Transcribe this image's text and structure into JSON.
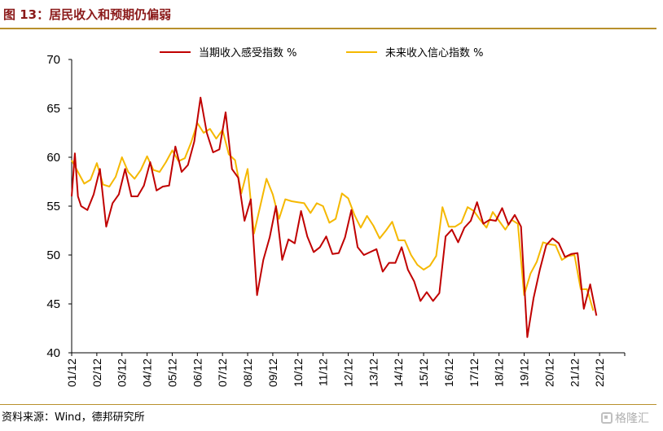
{
  "header": {
    "title": "图 13：居民收入和预期仍偏弱"
  },
  "footer": {
    "source": "资料来源：Wind，德邦研究所",
    "watermark": "格隆汇"
  },
  "colors": {
    "series_red": "#C00000",
    "series_yellow": "#F5B800",
    "accent": "#B8902C",
    "title": "#8B1A1A"
  },
  "chart_data": {
    "type": "line",
    "title": "",
    "xlabel": "",
    "ylabel": "",
    "ylim": [
      40,
      70
    ],
    "yticks": [
      40,
      45,
      50,
      55,
      60,
      65,
      70
    ],
    "xlim": [
      0,
      88
    ],
    "grid": false,
    "legend_position": "top",
    "x_ticks": [
      {
        "x": 0,
        "label": "01/12"
      },
      {
        "x": 4,
        "label": "02/12"
      },
      {
        "x": 8,
        "label": "03/12"
      },
      {
        "x": 12,
        "label": "04/12"
      },
      {
        "x": 16,
        "label": "05/12"
      },
      {
        "x": 20,
        "label": "06/12"
      },
      {
        "x": 24,
        "label": "07/12"
      },
      {
        "x": 28,
        "label": "08/12"
      },
      {
        "x": 32,
        "label": "09/12"
      },
      {
        "x": 36,
        "label": "10/12"
      },
      {
        "x": 40,
        "label": "11/12"
      },
      {
        "x": 44,
        "label": "12/12"
      },
      {
        "x": 48,
        "label": "13/12"
      },
      {
        "x": 52,
        "label": "14/12"
      },
      {
        "x": 56,
        "label": "15/12"
      },
      {
        "x": 60,
        "label": "16/12"
      },
      {
        "x": 64,
        "label": "17/12"
      },
      {
        "x": 68,
        "label": "18/12"
      },
      {
        "x": 72,
        "label": "19/12"
      },
      {
        "x": 76,
        "label": "20/12"
      },
      {
        "x": 80,
        "label": "21/12"
      },
      {
        "x": 84,
        "label": "22/12"
      }
    ],
    "series": [
      {
        "name": "当期收入感受指数 %",
        "color": "#C00000",
        "points": [
          [
            0,
            56.0
          ],
          [
            0.5,
            60.4
          ],
          [
            1,
            56.0
          ],
          [
            1.5,
            55.0
          ],
          [
            2.5,
            54.6
          ],
          [
            3.5,
            56.2
          ],
          [
            4.5,
            58.8
          ],
          [
            5.5,
            52.9
          ],
          [
            6.5,
            55.3
          ],
          [
            7.5,
            56.2
          ],
          [
            8.5,
            58.8
          ],
          [
            9.5,
            56.0
          ],
          [
            10.5,
            56.0
          ],
          [
            11.5,
            57.1
          ],
          [
            12.5,
            59.5
          ],
          [
            13.5,
            56.6
          ],
          [
            14.5,
            57.0
          ],
          [
            15.5,
            57.1
          ],
          [
            16.5,
            61.1
          ],
          [
            17.5,
            58.5
          ],
          [
            18.5,
            59.2
          ],
          [
            19.5,
            61.6
          ],
          [
            20.5,
            66.1
          ],
          [
            21.5,
            62.5
          ],
          [
            22.5,
            60.5
          ],
          [
            23.5,
            60.8
          ],
          [
            24.5,
            64.6
          ],
          [
            25.5,
            58.8
          ],
          [
            26.5,
            57.9
          ],
          [
            27.5,
            53.5
          ],
          [
            28.5,
            55.7
          ],
          [
            29.5,
            45.9
          ],
          [
            30.5,
            49.5
          ],
          [
            31.5,
            51.8
          ],
          [
            32.5,
            55.0
          ],
          [
            33.5,
            49.5
          ],
          [
            34.5,
            51.6
          ],
          [
            35.5,
            51.2
          ],
          [
            36.5,
            54.5
          ],
          [
            37.5,
            51.9
          ],
          [
            38.5,
            50.3
          ],
          [
            39.5,
            50.8
          ],
          [
            40.5,
            51.9
          ],
          [
            41.5,
            50.1
          ],
          [
            42.5,
            50.2
          ],
          [
            43.5,
            51.8
          ],
          [
            44.5,
            54.6
          ],
          [
            45.5,
            50.8
          ],
          [
            46.5,
            50.0
          ],
          [
            47.5,
            50.3
          ],
          [
            48.5,
            50.6
          ],
          [
            49.5,
            48.3
          ],
          [
            50.5,
            49.2
          ],
          [
            51.5,
            49.2
          ],
          [
            52.5,
            50.8
          ],
          [
            53.5,
            48.5
          ],
          [
            54.5,
            47.3
          ],
          [
            55.5,
            45.3
          ],
          [
            56.5,
            46.2
          ],
          [
            57.5,
            45.3
          ],
          [
            58.5,
            46.1
          ],
          [
            59.5,
            51.9
          ],
          [
            60.5,
            52.6
          ],
          [
            61.5,
            51.3
          ],
          [
            62.5,
            52.8
          ],
          [
            63.5,
            53.5
          ],
          [
            64.5,
            55.4
          ],
          [
            65.5,
            53.2
          ],
          [
            66.5,
            53.6
          ],
          [
            67.5,
            53.5
          ],
          [
            68.5,
            54.8
          ],
          [
            69.5,
            53.1
          ],
          [
            70.5,
            54.1
          ],
          [
            71.5,
            52.9
          ],
          [
            72.5,
            41.6
          ],
          [
            73.5,
            45.6
          ],
          [
            74.5,
            48.5
          ],
          [
            75.5,
            51.0
          ],
          [
            76.5,
            51.7
          ],
          [
            77.5,
            51.2
          ],
          [
            78.5,
            49.8
          ],
          [
            79.5,
            50.1
          ],
          [
            80.5,
            50.2
          ],
          [
            81.5,
            44.5
          ],
          [
            82.5,
            47.0
          ],
          [
            83.5,
            43.8
          ]
        ]
      },
      {
        "name": "未来收入信心指数 %",
        "color": "#F5B800",
        "points": [
          [
            0,
            59.7
          ],
          [
            1,
            58.5
          ],
          [
            2,
            57.3
          ],
          [
            3,
            57.7
          ],
          [
            4,
            59.4
          ],
          [
            5,
            57.2
          ],
          [
            6,
            57.0
          ],
          [
            7,
            58.0
          ],
          [
            8,
            60.0
          ],
          [
            9,
            58.5
          ],
          [
            10,
            57.8
          ],
          [
            11,
            58.7
          ],
          [
            12,
            60.1
          ],
          [
            13,
            58.7
          ],
          [
            14,
            58.5
          ],
          [
            15,
            59.5
          ],
          [
            16,
            60.7
          ],
          [
            17,
            59.6
          ],
          [
            18,
            59.9
          ],
          [
            19,
            61.5
          ],
          [
            20,
            63.5
          ],
          [
            21,
            62.5
          ],
          [
            22,
            62.9
          ],
          [
            23,
            61.9
          ],
          [
            24,
            62.8
          ],
          [
            25,
            60.3
          ],
          [
            26,
            59.7
          ],
          [
            27,
            56.3
          ],
          [
            28,
            58.8
          ],
          [
            29,
            52.2
          ],
          [
            30,
            55.0
          ],
          [
            31,
            57.8
          ],
          [
            32,
            56.2
          ],
          [
            33,
            53.7
          ],
          [
            34,
            55.7
          ],
          [
            35,
            55.5
          ],
          [
            36,
            55.4
          ],
          [
            37,
            55.3
          ],
          [
            38,
            54.3
          ],
          [
            39,
            55.3
          ],
          [
            40,
            55.0
          ],
          [
            41,
            53.3
          ],
          [
            42,
            53.7
          ],
          [
            43,
            56.3
          ],
          [
            44,
            55.8
          ],
          [
            45,
            54.1
          ],
          [
            46,
            52.8
          ],
          [
            47,
            54.0
          ],
          [
            48,
            53.0
          ],
          [
            49,
            51.7
          ],
          [
            50,
            52.5
          ],
          [
            51,
            53.4
          ],
          [
            52,
            51.5
          ],
          [
            53,
            51.5
          ],
          [
            54,
            50.0
          ],
          [
            55,
            49.0
          ],
          [
            56,
            48.5
          ],
          [
            57,
            48.9
          ],
          [
            58,
            49.9
          ],
          [
            59,
            54.9
          ],
          [
            60,
            52.9
          ],
          [
            61,
            52.9
          ],
          [
            62,
            53.3
          ],
          [
            63,
            54.9
          ],
          [
            64,
            54.5
          ],
          [
            65,
            53.6
          ],
          [
            66,
            52.8
          ],
          [
            67,
            54.4
          ],
          [
            68,
            53.5
          ],
          [
            69,
            52.6
          ],
          [
            70,
            53.6
          ],
          [
            71,
            53.2
          ],
          [
            72,
            45.9
          ],
          [
            73,
            48.1
          ],
          [
            74,
            49.3
          ],
          [
            75,
            51.3
          ],
          [
            76,
            51.1
          ],
          [
            77,
            51.0
          ],
          [
            78,
            49.5
          ],
          [
            79,
            49.9
          ],
          [
            80,
            50.0
          ],
          [
            81,
            46.5
          ],
          [
            82,
            46.5
          ],
          [
            83,
            44.3
          ]
        ]
      }
    ]
  }
}
